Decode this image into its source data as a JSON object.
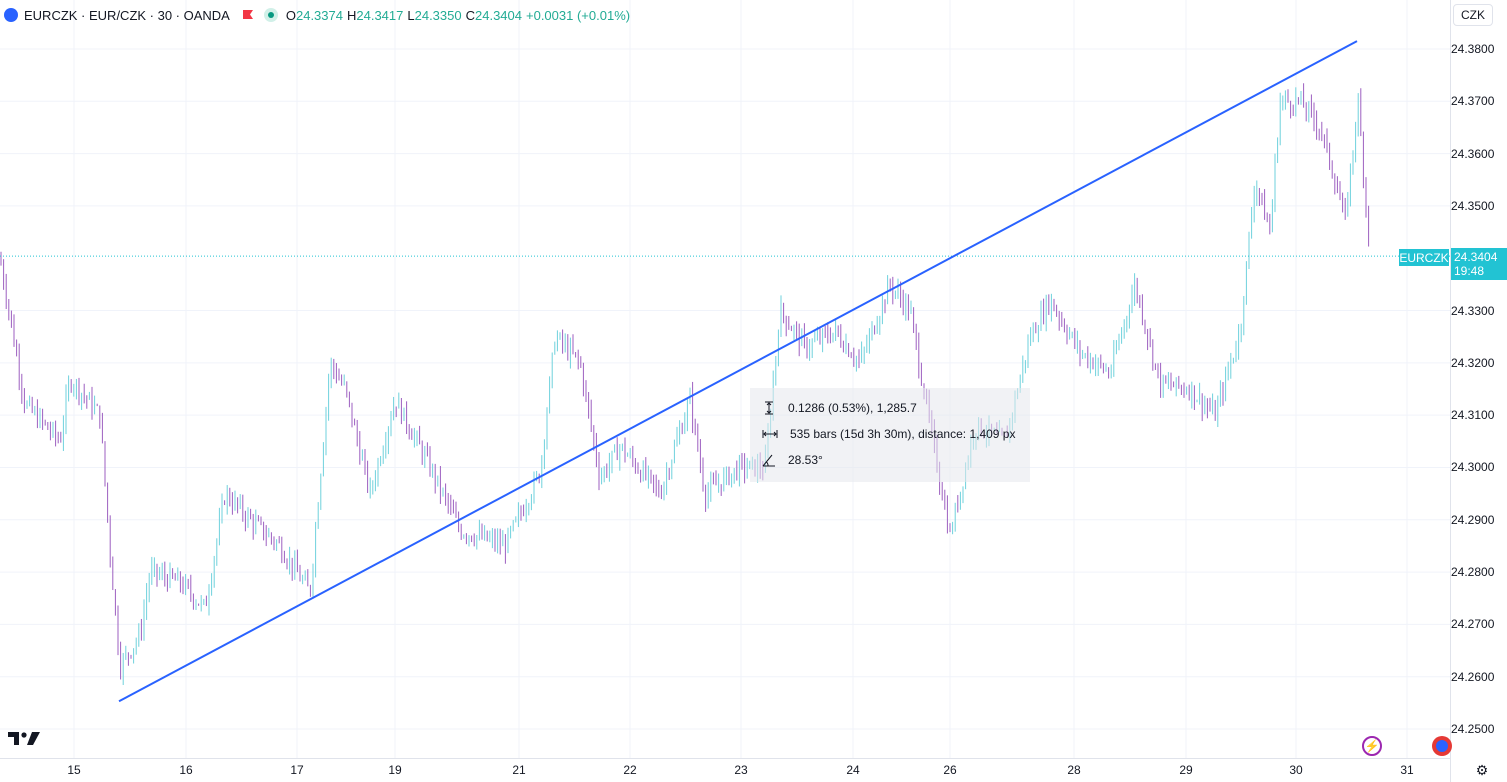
{
  "header": {
    "symbol": "EURCZK · EUR/CZK · 30 · OANDA",
    "open_key": "O",
    "open": "24.3374",
    "high_key": "H",
    "high": "24.3417",
    "low_key": "L",
    "low": "24.3350",
    "close_key": "C",
    "close": "24.3404",
    "change": "+0.0031 (+0.01%)"
  },
  "currency_button": "CZK",
  "price_scale": [
    "24.3800",
    "24.3700",
    "24.3600",
    "24.3500",
    "24.3300",
    "24.3200",
    "24.3100",
    "24.3000",
    "24.2900",
    "24.2800",
    "24.2700",
    "24.2600",
    "24.2500"
  ],
  "last_price": {
    "symbol_tag": "EURCZK",
    "price": "24.3404",
    "countdown": "19:48"
  },
  "time_axis": [
    "15",
    "16",
    "17",
    "19",
    "21",
    "22",
    "23",
    "24",
    "26",
    "28",
    "29",
    "30",
    "31"
  ],
  "measurement": {
    "price_range": "0.1286 (0.53%), 1,285.7",
    "bars_range": "535 bars (15d 3h 30m), distance: 1,409 px",
    "angle": "28.53°"
  },
  "colors": {
    "up": "#6fd1dc",
    "down": "#9c5fc0",
    "trendline": "#2962ff",
    "accent": "#22c3d3"
  },
  "chart_data": {
    "type": "ohlc",
    "title": "EURCZK · EUR/CZK · 30 · OANDA",
    "x": [
      "15",
      "16",
      "17",
      "19",
      "21",
      "22",
      "23",
      "24",
      "26",
      "28",
      "29",
      "30",
      "31"
    ],
    "ylim": [
      24.248,
      24.386
    ],
    "anchors": [
      [
        0,
        24.34
      ],
      [
        25,
        24.312
      ],
      [
        60,
        24.305
      ],
      [
        70,
        24.317
      ],
      [
        100,
        24.31
      ],
      [
        110,
        24.284
      ],
      [
        120,
        24.262
      ],
      [
        140,
        24.268
      ],
      [
        150,
        24.28
      ],
      [
        180,
        24.278
      ],
      [
        205,
        24.273
      ],
      [
        225,
        24.295
      ],
      [
        250,
        24.29
      ],
      [
        280,
        24.285
      ],
      [
        310,
        24.276
      ],
      [
        330,
        24.32
      ],
      [
        345,
        24.315
      ],
      [
        370,
        24.295
      ],
      [
        395,
        24.313
      ],
      [
        430,
        24.3
      ],
      [
        460,
        24.288
      ],
      [
        505,
        24.285
      ],
      [
        540,
        24.299
      ],
      [
        555,
        24.325
      ],
      [
        580,
        24.32
      ],
      [
        600,
        24.298
      ],
      [
        620,
        24.304
      ],
      [
        660,
        24.295
      ],
      [
        690,
        24.313
      ],
      [
        705,
        24.295
      ],
      [
        740,
        24.3
      ],
      [
        765,
        24.3
      ],
      [
        780,
        24.33
      ],
      [
        805,
        24.323
      ],
      [
        835,
        24.326
      ],
      [
        860,
        24.32
      ],
      [
        890,
        24.335
      ],
      [
        910,
        24.33
      ],
      [
        930,
        24.308
      ],
      [
        950,
        24.287
      ],
      [
        975,
        24.308
      ],
      [
        1005,
        24.305
      ],
      [
        1030,
        24.325
      ],
      [
        1050,
        24.332
      ],
      [
        1080,
        24.322
      ],
      [
        1110,
        24.318
      ],
      [
        1135,
        24.335
      ],
      [
        1160,
        24.316
      ],
      [
        1190,
        24.315
      ],
      [
        1215,
        24.31
      ],
      [
        1240,
        24.326
      ],
      [
        1255,
        24.355
      ],
      [
        1270,
        24.345
      ],
      [
        1280,
        24.37
      ],
      [
        1300,
        24.37
      ],
      [
        1320,
        24.365
      ],
      [
        1335,
        24.355
      ],
      [
        1345,
        24.347
      ],
      [
        1358,
        24.37
      ],
      [
        1370,
        24.3404
      ]
    ],
    "trendline": {
      "start": [
        "15",
        24.2553
      ],
      "end": [
        "30",
        24.3815
      ]
    },
    "last_price": 24.3404
  }
}
